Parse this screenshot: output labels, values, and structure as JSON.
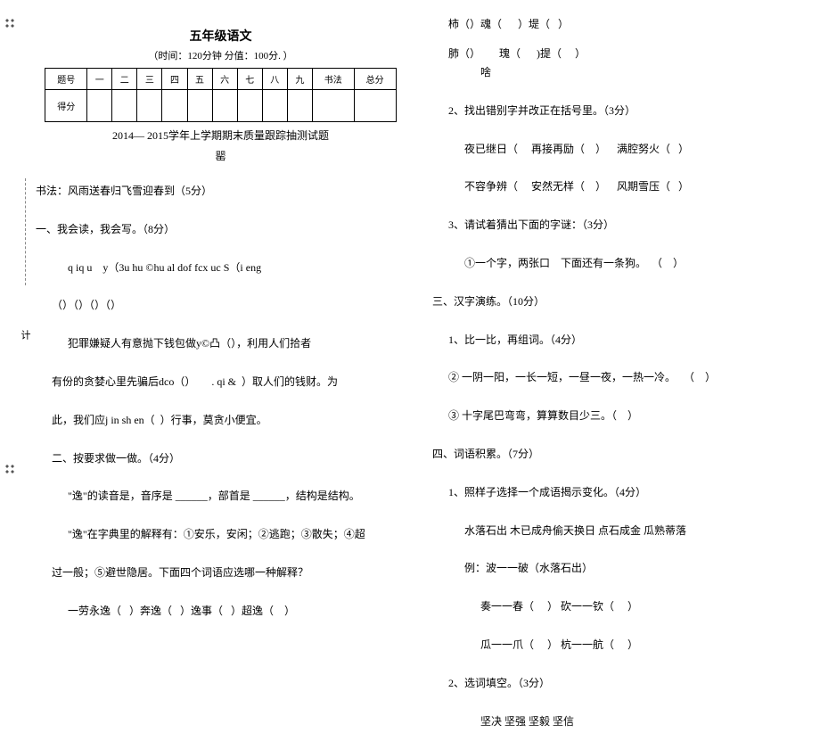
{
  "header": {
    "title": "五年级语文",
    "subtitle": "（时间：120分钟 分值：100分. ）",
    "yearline": "2014— 2015学年上学期期末质量跟踪抽测试题",
    "symbol": "罂"
  },
  "score_table": {
    "row1": [
      "题号",
      "一",
      "二",
      "三",
      "四",
      "五",
      "六",
      "七",
      "八",
      "九",
      "书法",
      "总分"
    ],
    "row2_label": "得分"
  },
  "left": {
    "shufa": "书法：风雨送春归飞雪迎春到（5分）",
    "sec1_title": "一、我会读，我会写。（8分）",
    "pinyin": "q iq u    y（3u hu ©hu al dof fcx uc S（i eng",
    "empty_brackets": "（）（）（）（）",
    "para1": "犯罪嫌疑人有意抛下钱包做y©凸（），利用人们拾者",
    "para2": "有份的贪婪心里先骗后dco（）      . qi &  ）取人们的钱财。为",
    "para3": "此，我们应j in sh en（  ）行事，莫贪小便宜。",
    "sec2_title": "二、按要求做一做。（4分）",
    "sec2_l1": "\"逸\"的读音是，音序是 ______，部首是 ______，结构是结构。",
    "sec2_l2": "\"逸\"在字典里的解释有：①安乐，安闲；②逃跑；③散失；④超",
    "sec2_l3": "过一般；⑤避世隐居。下面四个词语应选哪一种解释？",
    "sec2_l4": "一劳永逸（   ）奔逸（   ）逸事（   ）超逸（    ）"
  },
  "right": {
    "chars_row1": [
      {
        "c": "柿（",
        "tail": "）魂（      ）堤（   ）"
      }
    ],
    "chars_row2": [
      {
        "c": "肺（",
        "tail": "）       瑰（      )提（     ）"
      }
    ],
    "mid_sym": "啥",
    "q2_title": "2、找出错别字并改正在括号里。（3分）",
    "q2_l1": "夜已继日（     再接再励（    ）    满腔努火（   ）",
    "q2_l2": "不容争辨（     安然无样（    ）    风期雪压（   ）",
    "q3_title": "3、请试着猜出下面的字谜：（3分）",
    "q3_l1": "①一个字，两张口    下面还有一条狗。  （    ）",
    "sec3_title": "三、汉字演练。（10分）",
    "s3_q1": "1、比一比，再组词。（4分）",
    "s3_q1_l2": "② 一阴一阳，一长一短，一昼一夜，一热一冷。   （    ）",
    "s3_q1_l3": "③ 十字尾巴弯弯，算算数目少三。（    ）",
    "sec4_title": "四、词语积累。（7分）",
    "s4_q1": "1、照样子选择一个成语揭示变化。（4分）",
    "s4_q1_l1": "水落石出 木已成舟偷天换日 点石成金 瓜熟蒂落",
    "s4_q1_l2": "例：波一一破（水落石出）",
    "s4_q1_l3": "奏一一春（     ） 砍一一钦（     ）",
    "s4_q1_l4": "瓜一一爪（     ） 杭一一航（     ）",
    "s4_q2": "2、选词填空。（3分）",
    "s4_q2_l1": "坚决 坚强 坚毅 坚信"
  },
  "margin_char": "计"
}
